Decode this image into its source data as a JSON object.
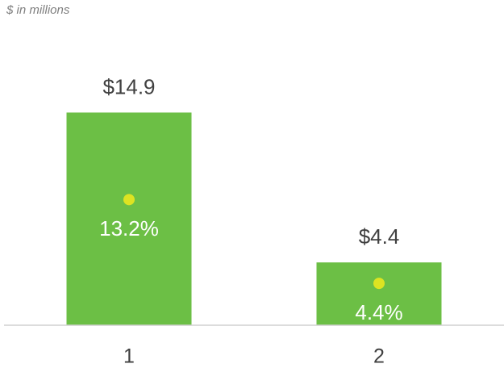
{
  "chart_data": {
    "type": "bar",
    "subtitle": "$ in millions",
    "categories": [
      "1",
      "2"
    ],
    "series": [
      {
        "color": "#6cbf45",
        "values": [
          14.9,
          4.4
        ],
        "value_labels": [
          "$14.9",
          "$4.4"
        ]
      },
      {
        "color": "#dde322",
        "values": [
          13.2,
          4.4
        ],
        "value_labels": [
          "13.2%",
          "4.4%"
        ],
        "axis": "y2",
        "mark": "dot"
      }
    ],
    "ylim": [
      0,
      16
    ],
    "y2lim": [
      0,
      24
    ]
  }
}
